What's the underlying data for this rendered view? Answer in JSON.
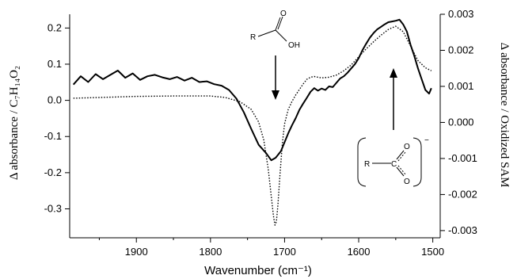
{
  "chart_data": {
    "type": "line",
    "title": "",
    "xlabel": "Wavenumber (cm⁻¹)",
    "xlim": [
      1990,
      1490
    ],
    "x_reversed": true,
    "x_ticks": [
      1900,
      1800,
      1700,
      1600,
      1500
    ],
    "ylabel_left": "Δ absorbance / C₇H₁₄O₂",
    "ylim_left": [
      -0.38,
      0.238
    ],
    "y_ticks_left": [
      0.2,
      0.1,
      0.0,
      -0.1,
      -0.2,
      -0.3
    ],
    "y_tick_labels_left": [
      "0.2",
      "0.1",
      "0.0",
      "-0.1",
      "-0.2",
      "-0.3"
    ],
    "ylabel_right": "Δ absorbance / Oxidized SAM",
    "ylim_right": [
      -0.0032,
      0.003
    ],
    "y_ticks_right": [
      0.003,
      0.002,
      0.001,
      0.0,
      -0.001,
      -0.002,
      -0.003
    ],
    "y_tick_labels_right": [
      "0.003",
      "0.002",
      "0.001",
      "0.000",
      "-0.001",
      "-0.002",
      "-0.003"
    ],
    "series": [
      {
        "axis": "right",
        "style": "solid",
        "x": [
          1985,
          1975,
          1965,
          1955,
          1945,
          1935,
          1925,
          1915,
          1905,
          1895,
          1885,
          1875,
          1865,
          1855,
          1845,
          1835,
          1825,
          1815,
          1805,
          1795,
          1785,
          1775,
          1765,
          1755,
          1745,
          1735,
          1725,
          1718,
          1712,
          1705,
          1700,
          1695,
          1690,
          1685,
          1680,
          1675,
          1670,
          1665,
          1660,
          1655,
          1650,
          1645,
          1640,
          1635,
          1630,
          1625,
          1620,
          1615,
          1610,
          1605,
          1600,
          1595,
          1590,
          1585,
          1580,
          1575,
          1570,
          1565,
          1560,
          1555,
          1550,
          1545,
          1540,
          1535,
          1530,
          1525,
          1520,
          1515,
          1510,
          1505,
          1502
        ],
        "values": [
          0.00105,
          0.00128,
          0.00112,
          0.00134,
          0.0012,
          0.00132,
          0.00144,
          0.00124,
          0.00136,
          0.00118,
          0.00128,
          0.00132,
          0.00125,
          0.0012,
          0.00126,
          0.00116,
          0.00124,
          0.00112,
          0.00114,
          0.00106,
          0.00102,
          0.0009,
          0.00066,
          0.00028,
          -0.00018,
          -0.00062,
          -0.00085,
          -0.00105,
          -0.00098,
          -0.0008,
          -0.00055,
          -0.0003,
          -8e-05,
          0.00012,
          0.00035,
          0.00052,
          0.00068,
          0.00085,
          0.00095,
          0.00088,
          0.00094,
          0.0009,
          0.001,
          0.00098,
          0.0011,
          0.00122,
          0.00128,
          0.00138,
          0.0015,
          0.00162,
          0.00178,
          0.002,
          0.00218,
          0.00235,
          0.00248,
          0.00258,
          0.00265,
          0.00272,
          0.00278,
          0.0028,
          0.00282,
          0.00285,
          0.00272,
          0.00252,
          0.00215,
          0.00185,
          0.0015,
          0.0012,
          0.0009,
          0.0008,
          0.00095
        ]
      },
      {
        "axis": "left",
        "style": "dotted",
        "x": [
          1985,
          1950,
          1900,
          1850,
          1800,
          1780,
          1760,
          1745,
          1735,
          1728,
          1722,
          1718,
          1715,
          1713,
          1711,
          1709,
          1706,
          1703,
          1700,
          1695,
          1690,
          1685,
          1680,
          1675,
          1670,
          1665,
          1660,
          1655,
          1650,
          1640,
          1630,
          1620,
          1610,
          1600,
          1590,
          1580,
          1570,
          1560,
          1550,
          1540,
          1530,
          1520,
          1510,
          1502
        ],
        "values": [
          0.006,
          0.008,
          0.011,
          0.012,
          0.012,
          0.008,
          -0.004,
          -0.025,
          -0.06,
          -0.11,
          -0.19,
          -0.265,
          -0.32,
          -0.345,
          -0.335,
          -0.29,
          -0.2,
          -0.12,
          -0.065,
          -0.025,
          -0.003,
          0.015,
          0.03,
          0.045,
          0.058,
          0.064,
          0.066,
          0.064,
          0.062,
          0.064,
          0.07,
          0.082,
          0.098,
          0.12,
          0.142,
          0.162,
          0.18,
          0.196,
          0.205,
          0.19,
          0.15,
          0.11,
          0.09,
          0.082
        ]
      }
    ],
    "annotations": [
      {
        "text_r": "R",
        "text_o": "O",
        "text_oh": "OH",
        "label": "carboxylic-acid"
      },
      {
        "text_r": "R",
        "text_o1": "O",
        "text_o2": "O",
        "text_charge": "−",
        "label": "carboxylate"
      }
    ]
  }
}
